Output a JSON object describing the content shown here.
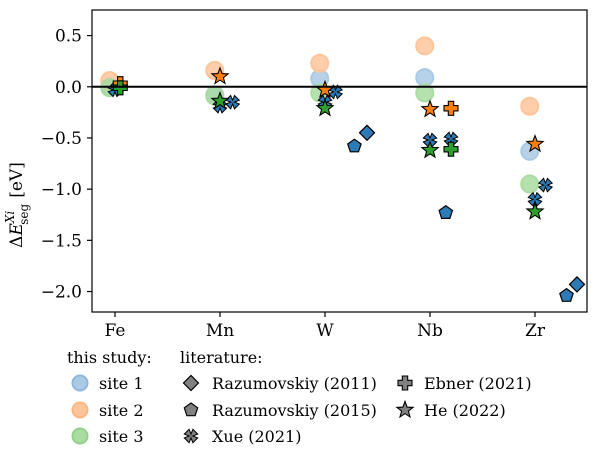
{
  "chart_data": {
    "type": "scatter",
    "title": "",
    "xlabel": "",
    "ylabel": "ΔE^{Xi}_{seg} [eV]",
    "ylabel_parts": {
      "delta": "Δ",
      "E": "E",
      "sup": "Xi",
      "sub": "seg",
      "unit": "[eV]"
    },
    "categories": [
      "Fe",
      "Mn",
      "W",
      "Nb",
      "Zr"
    ],
    "yticks": [
      0.5,
      0.0,
      -0.5,
      -1.0,
      -1.5,
      -2.0
    ],
    "ytick_labels": [
      "0.5",
      "0.0",
      "−0.5",
      "−1.0",
      "−1.5",
      "−2.0"
    ],
    "ylim": [
      -2.2,
      0.75
    ],
    "zero_line": 0.0,
    "series": [
      {
        "name": "site 1",
        "group": "this study",
        "marker": "circle",
        "color": "#aac9e4",
        "offset": -0.05,
        "values": [
          0.0,
          -0.08,
          0.08,
          0.09,
          -0.63
        ]
      },
      {
        "name": "site 2",
        "group": "this study",
        "marker": "circle",
        "color": "#fec49a",
        "offset": -0.05,
        "values": [
          0.06,
          0.16,
          0.23,
          0.4,
          -0.19
        ]
      },
      {
        "name": "site 3",
        "group": "this study",
        "marker": "circle",
        "color": "#a9dca1",
        "offset": -0.05,
        "values": [
          -0.01,
          -0.09,
          -0.06,
          -0.06,
          -0.95
        ]
      },
      {
        "name": "Razumovskiy (2011)",
        "group": "literature",
        "marker": "diamond",
        "color": "#2c7bb6",
        "points": [
          {
            "cat": 2,
            "offset": 0.4,
            "y": -0.45
          },
          {
            "cat": 4,
            "offset": 0.4,
            "y": -1.93
          }
        ]
      },
      {
        "name": "Razumovskiy (2015)",
        "group": "literature",
        "marker": "pentagon",
        "color": "#2c7bb6",
        "points": [
          {
            "cat": 2,
            "offset": 0.28,
            "y": -0.58
          },
          {
            "cat": 3,
            "offset": 0.15,
            "y": -1.23
          },
          {
            "cat": 4,
            "offset": 0.3,
            "y": -2.04
          }
        ]
      },
      {
        "name": "Xue (2021)",
        "group": "literature",
        "marker": "x",
        "color": "#2c7bb6",
        "points": [
          {
            "cat": 0,
            "offset": 0.0,
            "y": -0.03
          },
          {
            "cat": 1,
            "offset": 0.0,
            "y": -0.19
          },
          {
            "cat": 1,
            "offset": 0.12,
            "y": -0.15
          },
          {
            "cat": 2,
            "offset": 0.0,
            "y": -0.15
          },
          {
            "cat": 2,
            "offset": 0.1,
            "y": -0.05
          },
          {
            "cat": 3,
            "offset": 0.0,
            "y": -0.52
          },
          {
            "cat": 3,
            "offset": 0.2,
            "y": -0.51
          },
          {
            "cat": 4,
            "offset": 0.0,
            "y": -1.1
          },
          {
            "cat": 4,
            "offset": 0.1,
            "y": -0.96
          }
        ]
      },
      {
        "name": "Ebner (2021)",
        "group": "literature",
        "marker": "plus",
        "points": [
          {
            "cat": 0,
            "offset": 0.05,
            "y": 0.03,
            "color": "#ff7f0e"
          },
          {
            "cat": 0,
            "offset": 0.05,
            "y": -0.01,
            "color": "#2ca02c"
          },
          {
            "cat": 3,
            "offset": 0.2,
            "y": -0.21,
            "color": "#ff7f0e"
          },
          {
            "cat": 3,
            "offset": 0.2,
            "y": -0.61,
            "color": "#2ca02c"
          }
        ]
      },
      {
        "name": "He (2022)",
        "group": "literature",
        "marker": "star",
        "points": [
          {
            "cat": 1,
            "offset": 0.0,
            "y": 0.1,
            "color": "#ff7f0e"
          },
          {
            "cat": 1,
            "offset": 0.0,
            "y": -0.14,
            "color": "#2ca02c"
          },
          {
            "cat": 2,
            "offset": 0.0,
            "y": -0.03,
            "color": "#ff7f0e"
          },
          {
            "cat": 2,
            "offset": 0.0,
            "y": -0.21,
            "color": "#2ca02c"
          },
          {
            "cat": 3,
            "offset": 0.0,
            "y": -0.22,
            "color": "#ff7f0e"
          },
          {
            "cat": 3,
            "offset": 0.0,
            "y": -0.62,
            "color": "#2ca02c"
          },
          {
            "cat": 4,
            "offset": 0.0,
            "y": -0.56,
            "color": "#ff7f0e"
          },
          {
            "cat": 4,
            "offset": 0.0,
            "y": -1.22,
            "color": "#2ca02c"
          }
        ]
      }
    ],
    "legend": {
      "placement": "below",
      "this_study_title": "this study:",
      "literature_title": "literature:",
      "site1": "site 1",
      "site2": "site 2",
      "site3": "site 3",
      "raz2011": "Razumovskiy (2011)",
      "raz2015": "Razumovskiy (2015)",
      "xue": "Xue (2021)",
      "ebner": "Ebner (2021)",
      "he": "He (2022)",
      "literature_marker_color": "#808080"
    }
  }
}
